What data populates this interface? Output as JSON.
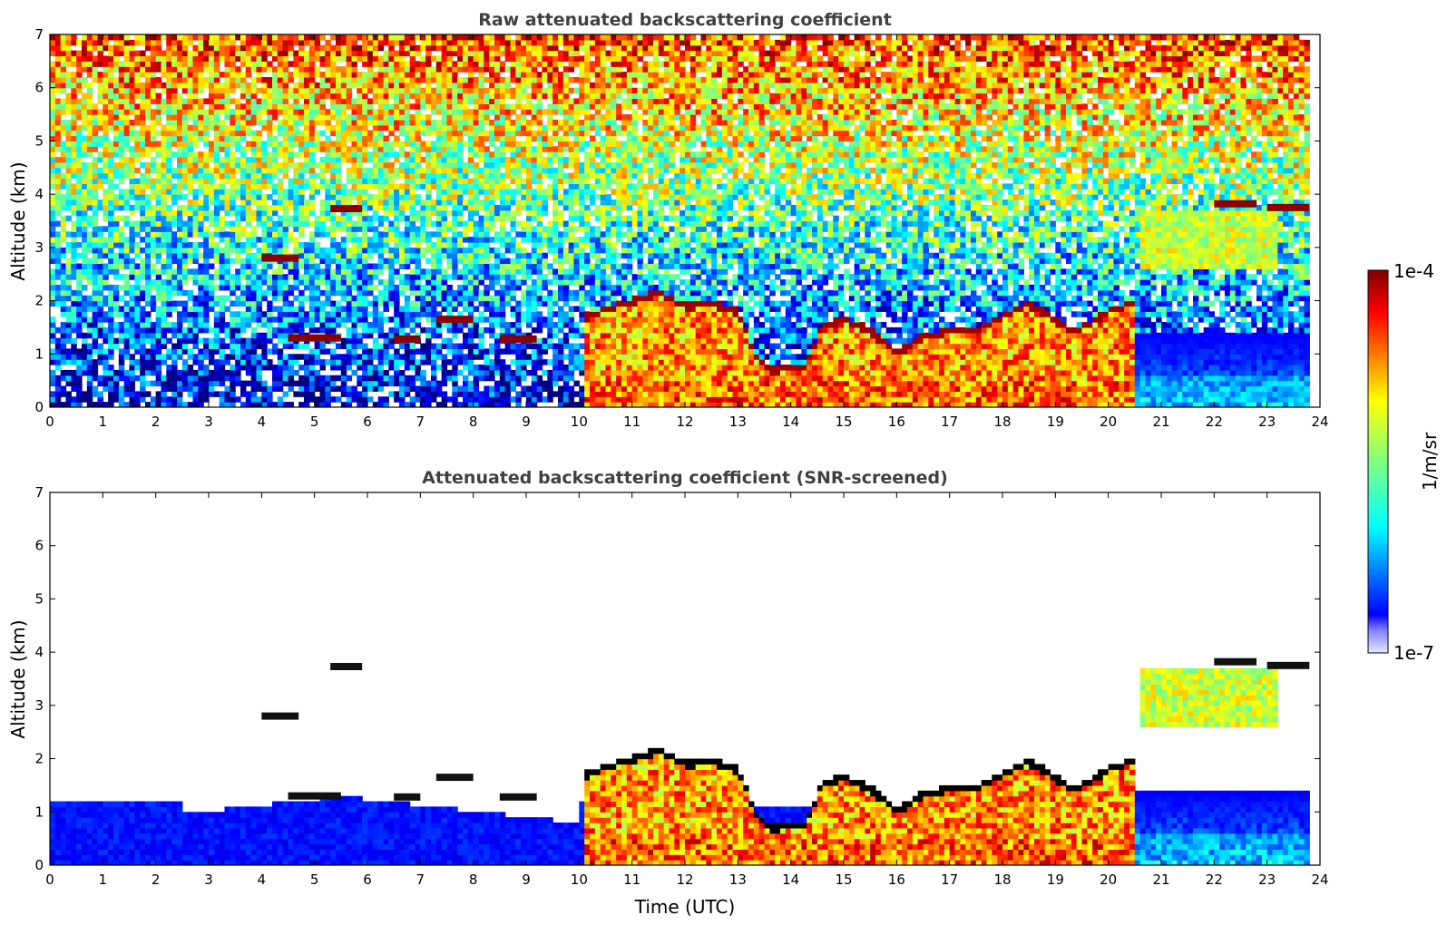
{
  "chart_data": [
    {
      "type": "heatmap",
      "title": "Raw attenuated backscattering coefficient",
      "xlabel": "",
      "ylabel": "Altitude (km)",
      "xlim": [
        0,
        24
      ],
      "ylim": [
        0,
        7
      ],
      "x_ticks": [
        "0",
        "1",
        "2",
        "3",
        "4",
        "5",
        "6",
        "7",
        "8",
        "9",
        "10",
        "11",
        "12",
        "13",
        "14",
        "15",
        "16",
        "17",
        "18",
        "19",
        "20",
        "21",
        "22",
        "23",
        "24"
      ],
      "y_ticks": [
        "0",
        "1",
        "2",
        "3",
        "4",
        "5",
        "6",
        "7"
      ],
      "screened": false
    },
    {
      "type": "heatmap",
      "title": "Attenuated backscattering coefficient (SNR-screened)",
      "xlabel": "Time (UTC)",
      "ylabel": "Altitude (km)",
      "xlim": [
        0,
        24
      ],
      "ylim": [
        0,
        7
      ],
      "x_ticks": [
        "0",
        "1",
        "2",
        "3",
        "4",
        "5",
        "6",
        "7",
        "8",
        "9",
        "10",
        "11",
        "12",
        "13",
        "14",
        "15",
        "16",
        "17",
        "18",
        "19",
        "20",
        "21",
        "22",
        "23",
        "24"
      ],
      "y_ticks": [
        "0",
        "1",
        "2",
        "3",
        "4",
        "5",
        "6",
        "7"
      ],
      "screened": true
    }
  ],
  "colorbar": {
    "label": "1/m/sr",
    "max_label": "1e-4",
    "min_label": "1e-7",
    "colormap": "jet",
    "scale": "log"
  },
  "features": {
    "cloud_top_profile": [
      [
        10.15,
        1.75
      ],
      [
        10.5,
        1.9
      ],
      [
        11.0,
        2.05
      ],
      [
        11.5,
        2.2
      ],
      [
        12.0,
        1.95
      ],
      [
        12.5,
        2.0
      ],
      [
        13.0,
        1.85
      ],
      [
        13.35,
        1.0
      ],
      [
        13.6,
        0.75
      ],
      [
        14.0,
        0.8
      ],
      [
        14.3,
        0.85
      ],
      [
        14.6,
        1.6
      ],
      [
        15.0,
        1.7
      ],
      [
        15.5,
        1.5
      ],
      [
        16.0,
        1.05
      ],
      [
        16.5,
        1.4
      ],
      [
        17.0,
        1.5
      ],
      [
        17.5,
        1.5
      ],
      [
        18.0,
        1.75
      ],
      [
        18.5,
        2.0
      ],
      [
        19.0,
        1.7
      ],
      [
        19.3,
        1.45
      ],
      [
        19.6,
        1.6
      ],
      [
        20.0,
        1.85
      ],
      [
        20.5,
        2.05
      ]
    ],
    "cloud_segments": [
      [
        4.0,
        4.7,
        2.8
      ],
      [
        5.3,
        5.9,
        3.73
      ],
      [
        4.5,
        5.5,
        1.3
      ],
      [
        6.5,
        7.0,
        1.28
      ],
      [
        7.3,
        8.0,
        1.65
      ],
      [
        8.5,
        9.2,
        1.28
      ],
      [
        22.0,
        22.8,
        3.82
      ],
      [
        23.0,
        23.8,
        3.75
      ]
    ],
    "elevated_layer": {
      "x_start": 20.6,
      "x_end": 23.2,
      "y_bottom": 2.6,
      "y_top": 3.7
    }
  }
}
